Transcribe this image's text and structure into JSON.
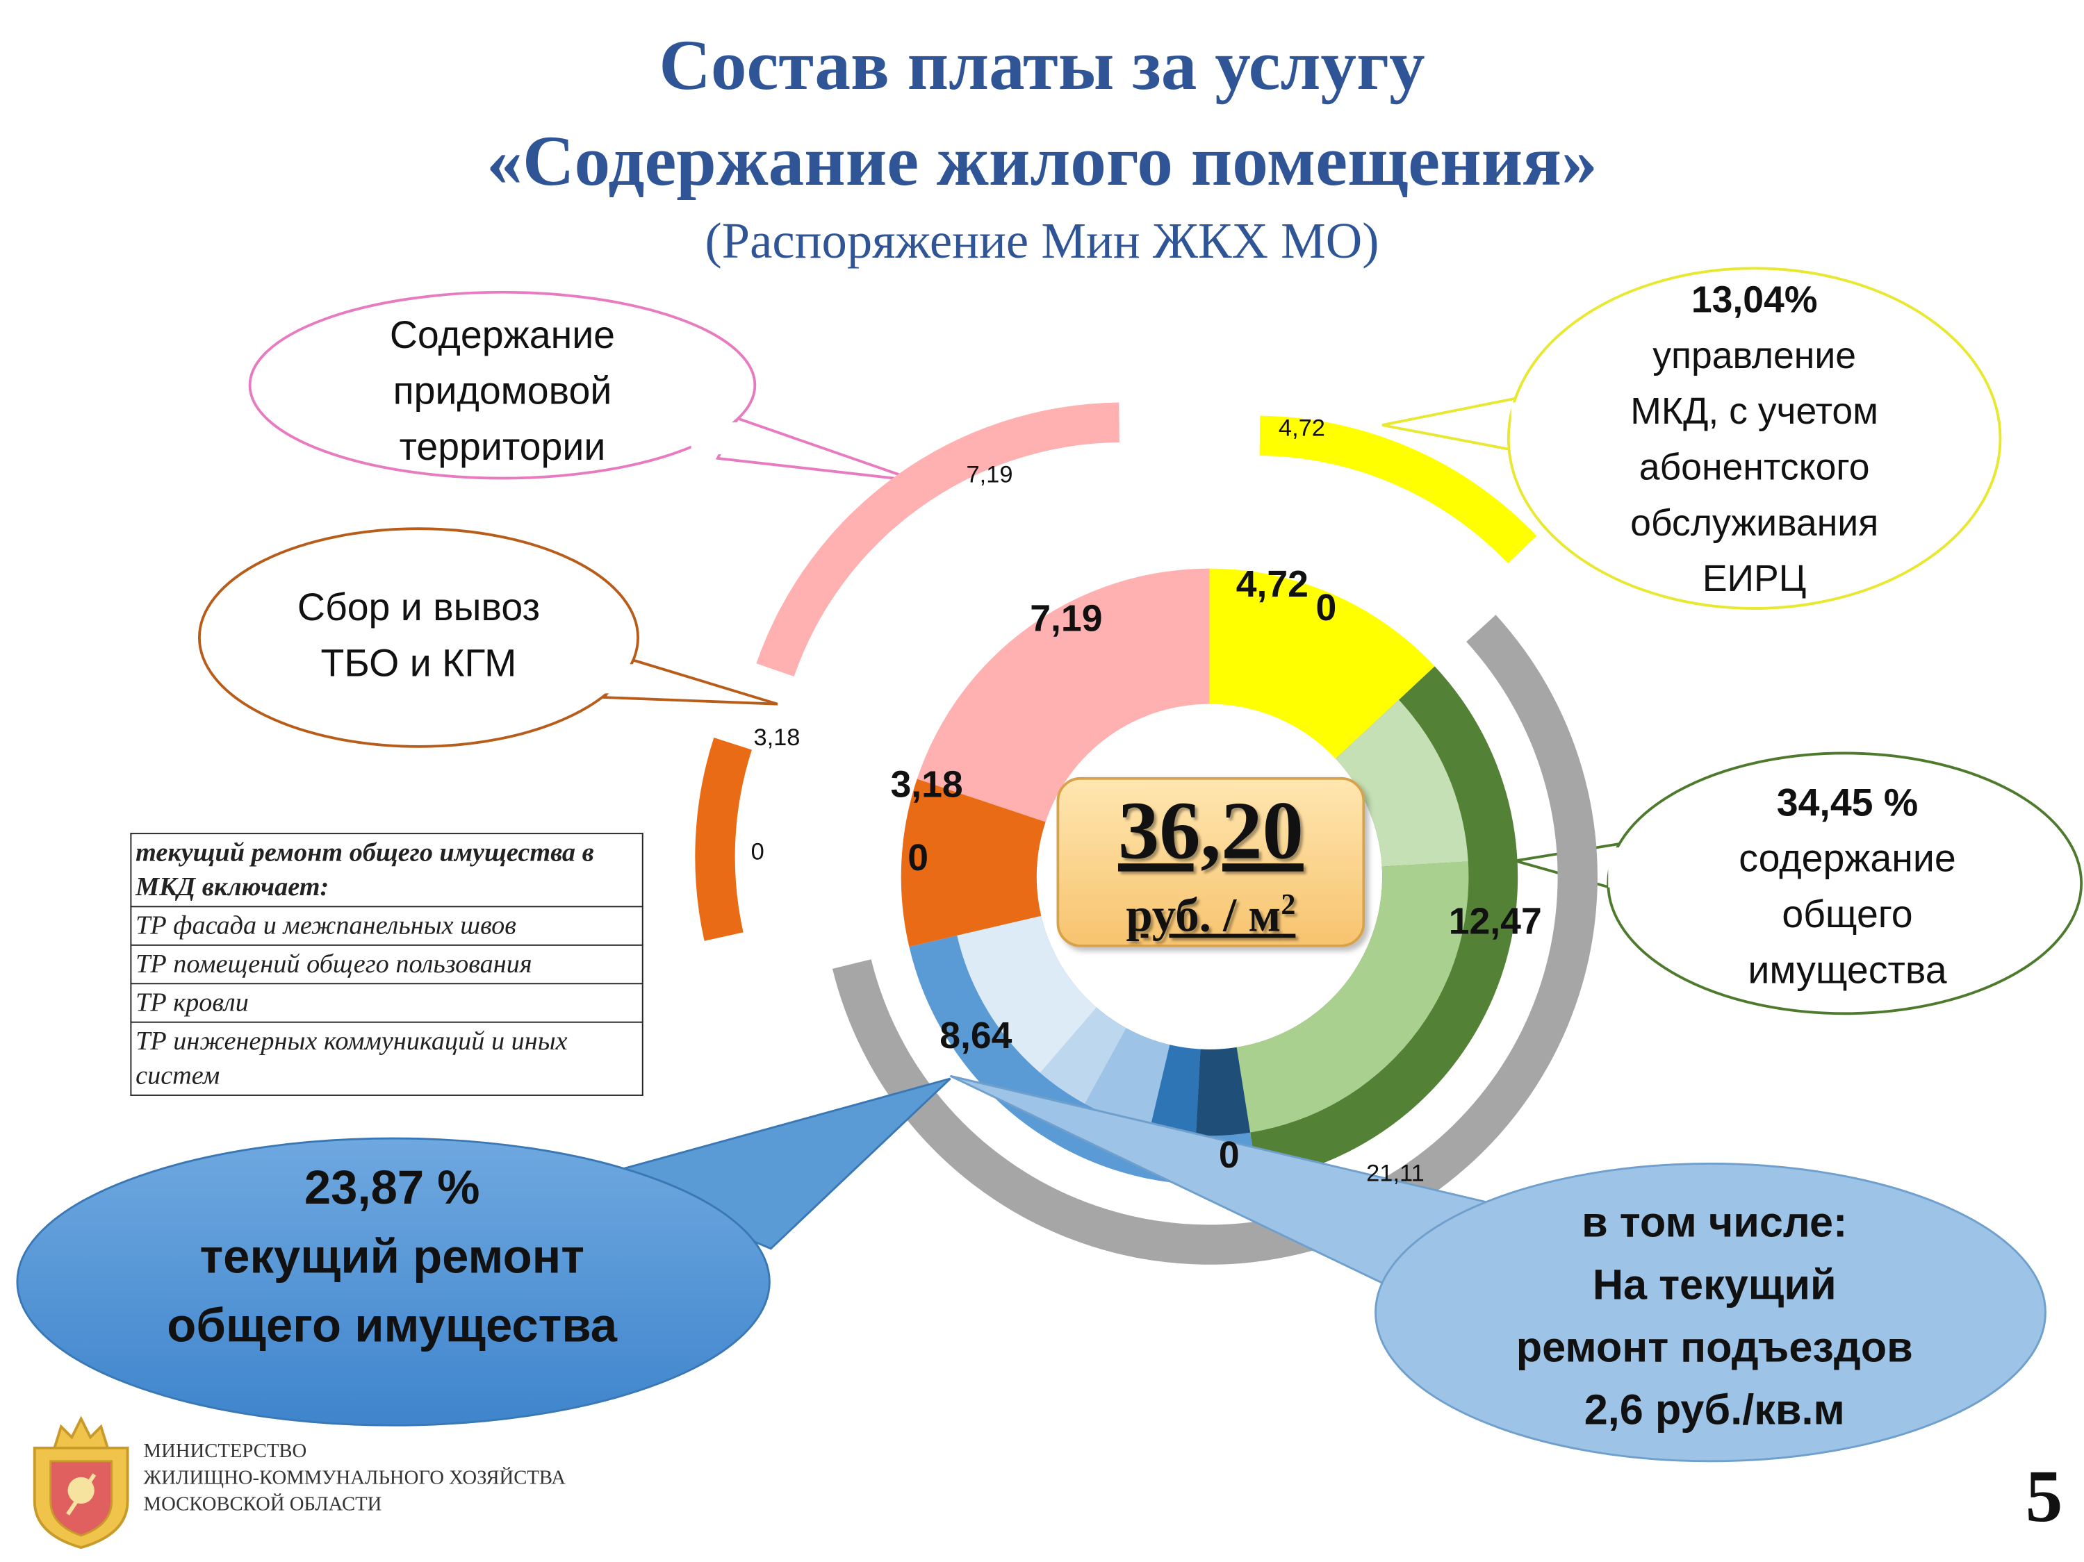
{
  "title": {
    "line1": "Состав платы за услугу",
    "line2": "«Содержание жилого помещения»",
    "line3": "(Распоряжение Мин ЖКХ МО)"
  },
  "center": {
    "total": "36,20",
    "unit_main": "руб. / м",
    "unit_sup": "2"
  },
  "colors": {
    "yellow": "#ffff00",
    "pink": "#ffb0b0",
    "orange": "#ea6b15",
    "blue": "#5b9bd5",
    "dark_green": "#538135",
    "light_green": "#a9d08e",
    "pale_green": "#c5e0b4",
    "gray": "#a6a6a6",
    "title_blue": "#2f5597"
  },
  "chart_data": {
    "type": "pie",
    "total": 36.2,
    "inner_ring": [
      {
        "value": 4.72,
        "label": "4,72",
        "color": "#ffff00"
      },
      {
        "value": 0,
        "label": "0",
        "color": "#ffff00"
      },
      {
        "value": 12.47,
        "label": "12,47",
        "color": "#538135"
      },
      {
        "value": 0,
        "label": "0",
        "color": "#538135"
      },
      {
        "value": 8.64,
        "label": "8,64",
        "color": "#5b9bd5"
      },
      {
        "value": 0,
        "label": "0",
        "color": "#5b9bd5"
      },
      {
        "value": 3.18,
        "label": "3,18",
        "color": "#ea6b15"
      },
      {
        "value": 7.19,
        "label": "7,19",
        "color": "#ffb0b0"
      }
    ],
    "outer_ring": [
      {
        "value": 4.72,
        "label": "4,72",
        "color": "#ffff00"
      },
      {
        "value": 21.11,
        "label": "21,11",
        "color": "#a6a6a6"
      },
      {
        "value": 0,
        "label": "0",
        "color": "#a6a6a6"
      },
      {
        "value": 3.18,
        "label": "3,18",
        "color": "#ea6b15"
      },
      {
        "value": 7.19,
        "label": "7,19",
        "color": "#ffb0b0"
      }
    ]
  },
  "callouts": {
    "territory": {
      "lines": [
        "Содержание",
        "придомовой",
        "территории"
      ]
    },
    "waste": {
      "lines": [
        "Сбор и вывоз",
        "ТБО и КГМ"
      ]
    },
    "management": {
      "percent": "13,04%",
      "lines": [
        "управление",
        "МКД, с учетом",
        "абонентского",
        "обслуживания",
        "ЕИРЦ"
      ]
    },
    "common_property": {
      "percent": "34,45 %",
      "lines": [
        "содержание",
        "общего",
        "имущества"
      ]
    },
    "repair": {
      "lines": [
        "23,87 %",
        "текущий ремонт",
        "общего имущества"
      ]
    },
    "entrances": {
      "lines": [
        "в том числе:",
        "На текущий",
        "ремонт подъездов",
        "2,6 руб./кв.м"
      ]
    }
  },
  "repair_table": {
    "header": "текущий ремонт общего имущества в МКД включает:",
    "rows": [
      "ТР фасада и межпанельных швов",
      "ТР помещений общего пользования",
      "ТР кровли",
      "ТР инженерных коммуникаций и иных систем"
    ]
  },
  "footer": {
    "ministry": [
      "МИНИСТЕРСТВО",
      "ЖИЛИЩНО-КОММУНАЛЬНОГО ХОЗЯЙСТВА",
      "МОСКОВСКОЙ ОБЛАСТИ"
    ],
    "page": "5"
  }
}
